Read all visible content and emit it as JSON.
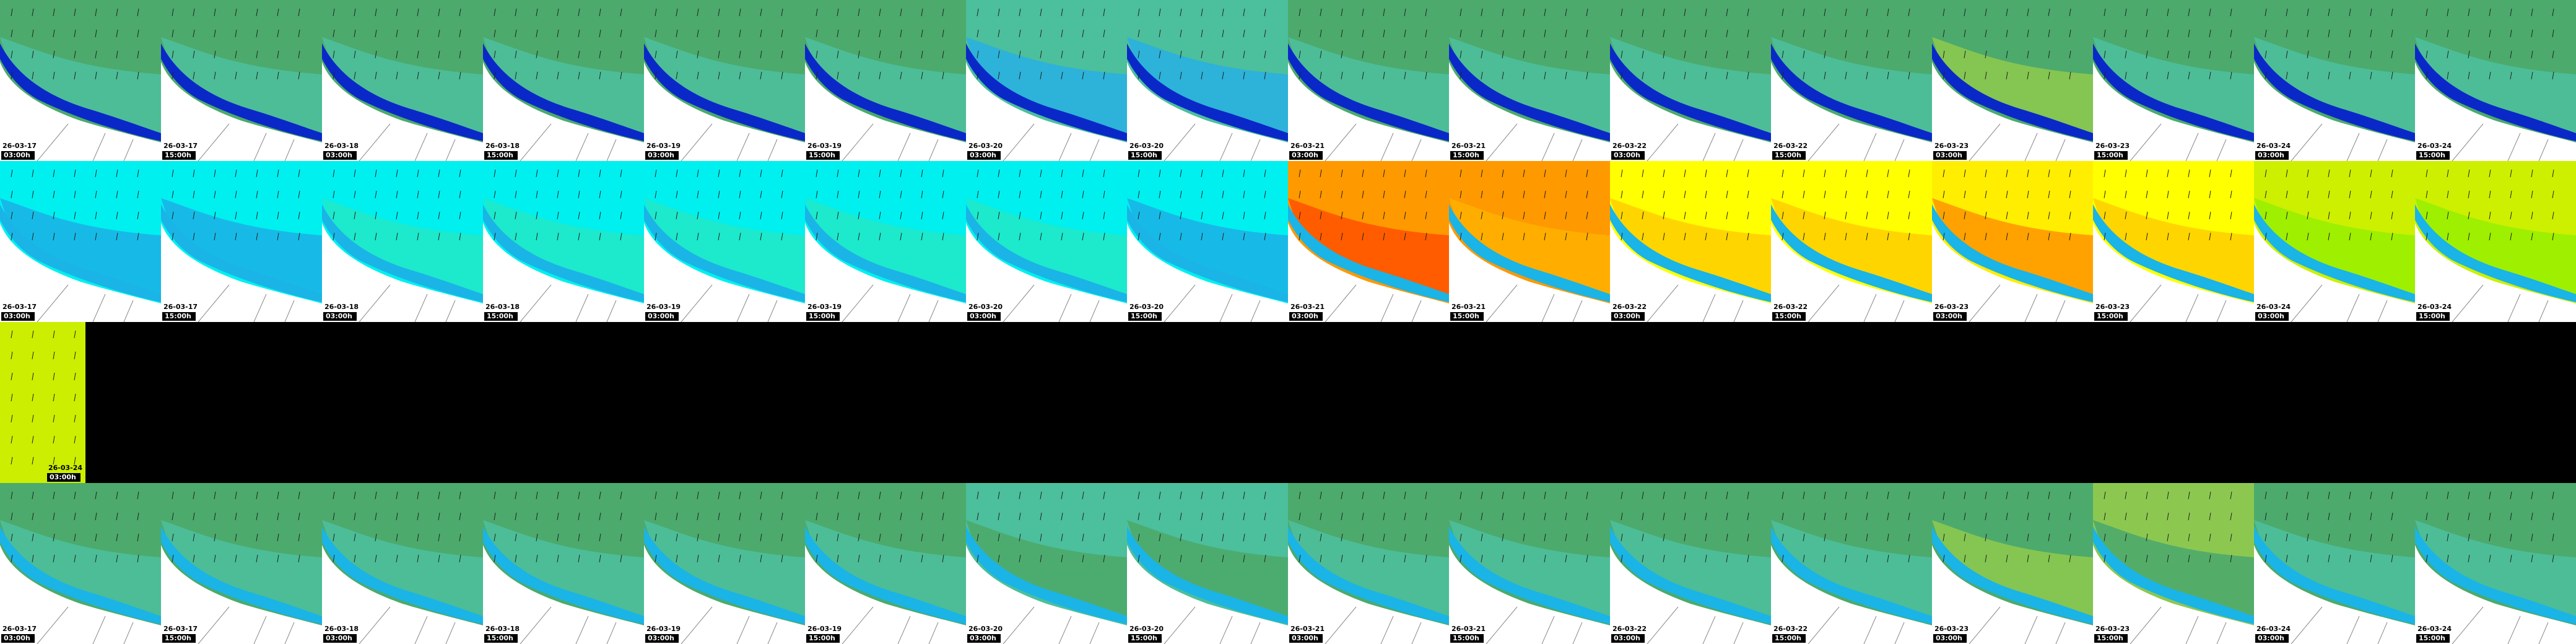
{
  "rows": [
    {
      "tiles": [
        {
          "date": "26-03-17",
          "time": "03:00h",
          "color": "#4caa6c",
          "sea": "#4cbf9c"
        },
        {
          "date": "26-03-17",
          "time": "15:00h",
          "color": "#4caa6c",
          "sea": "#4cbf9c"
        },
        {
          "date": "26-03-18",
          "time": "03:00h",
          "color": "#4caa6c",
          "sea": "#4cbf9c"
        },
        {
          "date": "26-03-18",
          "time": "15:00h",
          "color": "#4caa6c",
          "sea": "#4cbf9c"
        },
        {
          "date": "26-03-19",
          "time": "03:00h",
          "color": "#4caa6c",
          "sea": "#4cbf9c"
        },
        {
          "date": "26-03-19",
          "time": "15:00h",
          "color": "#4caa6c",
          "sea": "#4cbf9c"
        },
        {
          "date": "26-03-20",
          "time": "03:00h",
          "color": "#4cbf9c",
          "sea": "#2ab0e0"
        },
        {
          "date": "26-03-20",
          "time": "15:00h",
          "color": "#4cbf9c",
          "sea": "#2ab0e0"
        },
        {
          "date": "26-03-21",
          "time": "03:00h",
          "color": "#4caa6c",
          "sea": "#4cbf9c"
        },
        {
          "date": "26-03-21",
          "time": "15:00h",
          "color": "#4caa6c",
          "sea": "#4cbf9c"
        },
        {
          "date": "26-03-22",
          "time": "03:00h",
          "color": "#4caa6c",
          "sea": "#4cbf9c"
        },
        {
          "date": "26-03-22",
          "time": "15:00h",
          "color": "#4caa6c",
          "sea": "#4cbf9c"
        },
        {
          "date": "26-03-23",
          "time": "03:00h",
          "color": "#4caa6c",
          "sea": "#8cc850"
        },
        {
          "date": "26-03-23",
          "time": "15:00h",
          "color": "#4caa6c",
          "sea": "#4cbf9c"
        },
        {
          "date": "26-03-24",
          "time": "03:00h",
          "color": "#4caa6c",
          "sea": "#4cbf9c"
        },
        {
          "date": "26-03-24",
          "time": "15:00h",
          "color": "#4caa6c",
          "sea": "#4cbf9c"
        }
      ]
    },
    {
      "tiles": [
        {
          "date": "26-03-17",
          "time": "03:00h",
          "color": "#00f0f0",
          "sea": "#1ab4e6"
        },
        {
          "date": "26-03-17",
          "time": "15:00h",
          "color": "#00f0f0",
          "sea": "#1ab4e6"
        },
        {
          "date": "26-03-18",
          "time": "03:00h",
          "color": "#00f0f0",
          "sea": "#20e8c8"
        },
        {
          "date": "26-03-18",
          "time": "15:00h",
          "color": "#00f0f0",
          "sea": "#20e8c8"
        },
        {
          "date": "26-03-19",
          "time": "03:00h",
          "color": "#00f0f0",
          "sea": "#20e8c8"
        },
        {
          "date": "26-03-19",
          "time": "15:00h",
          "color": "#00f0f0",
          "sea": "#20e8c8"
        },
        {
          "date": "26-03-20",
          "time": "03:00h",
          "color": "#00f0f0",
          "sea": "#20e8c8"
        },
        {
          "date": "26-03-20",
          "time": "15:00h",
          "color": "#00f0f0",
          "sea": "#1ab4e6"
        },
        {
          "date": "26-03-21",
          "time": "03:00h",
          "color": "#ff9900",
          "sea": "#ff5500"
        },
        {
          "date": "26-03-21",
          "time": "15:00h",
          "color": "#ff9900",
          "sea": "#ffb000"
        },
        {
          "date": "26-03-22",
          "time": "03:00h",
          "color": "#ffff00",
          "sea": "#ffd000"
        },
        {
          "date": "26-03-22",
          "time": "15:00h",
          "color": "#ffff00",
          "sea": "#ffd000"
        },
        {
          "date": "26-03-23",
          "time": "03:00h",
          "color": "#ffee00",
          "sea": "#ff9900"
        },
        {
          "date": "26-03-23",
          "time": "15:00h",
          "color": "#ffff00",
          "sea": "#ffd000"
        },
        {
          "date": "26-03-24",
          "time": "03:00h",
          "color": "#ccf000",
          "sea": "#99ee00"
        },
        {
          "date": "26-03-24",
          "time": "15:00h",
          "color": "#ccf000",
          "sea": "#99ee00"
        }
      ]
    },
    {
      "tiles": [
        {
          "date": "26-03-24",
          "time": "03:00h",
          "color": "#ccee00",
          "sea": "#ccee00"
        }
      ]
    },
    {
      "tiles": [
        {
          "date": "26-03-17",
          "time": "03:00h",
          "color": "#4caa6c",
          "sea": "#4cbf9c"
        },
        {
          "date": "26-03-17",
          "time": "15:00h",
          "color": "#4caa6c",
          "sea": "#4cbf9c"
        },
        {
          "date": "26-03-18",
          "time": "03:00h",
          "color": "#4caa6c",
          "sea": "#4cbf9c"
        },
        {
          "date": "26-03-18",
          "time": "15:00h",
          "color": "#4caa6c",
          "sea": "#4cbf9c"
        },
        {
          "date": "26-03-19",
          "time": "03:00h",
          "color": "#4caa6c",
          "sea": "#4cbf9c"
        },
        {
          "date": "26-03-19",
          "time": "15:00h",
          "color": "#4caa6c",
          "sea": "#4cbf9c"
        },
        {
          "date": "26-03-20",
          "time": "03:00h",
          "color": "#4cbf9c",
          "sea": "#4caa6c"
        },
        {
          "date": "26-03-20",
          "time": "15:00h",
          "color": "#4cbf9c",
          "sea": "#4caa6c"
        },
        {
          "date": "26-03-21",
          "time": "03:00h",
          "color": "#4caa6c",
          "sea": "#4cbf9c"
        },
        {
          "date": "26-03-21",
          "time": "15:00h",
          "color": "#4caa6c",
          "sea": "#4cbf9c"
        },
        {
          "date": "26-03-22",
          "time": "03:00h",
          "color": "#4caa6c",
          "sea": "#4cbf9c"
        },
        {
          "date": "26-03-22",
          "time": "15:00h",
          "color": "#4caa6c",
          "sea": "#4cbf9c"
        },
        {
          "date": "26-03-23",
          "time": "03:00h",
          "color": "#4caa6c",
          "sea": "#8cc850"
        },
        {
          "date": "26-03-23",
          "time": "15:00h",
          "color": "#8cc850",
          "sea": "#4caa6c"
        },
        {
          "date": "26-03-24",
          "time": "03:00h",
          "color": "#4caa6c",
          "sea": "#4cbf9c"
        },
        {
          "date": "26-03-24",
          "time": "15:00h",
          "color": "#4caa6c",
          "sea": "#4cbf9c"
        }
      ]
    }
  ]
}
